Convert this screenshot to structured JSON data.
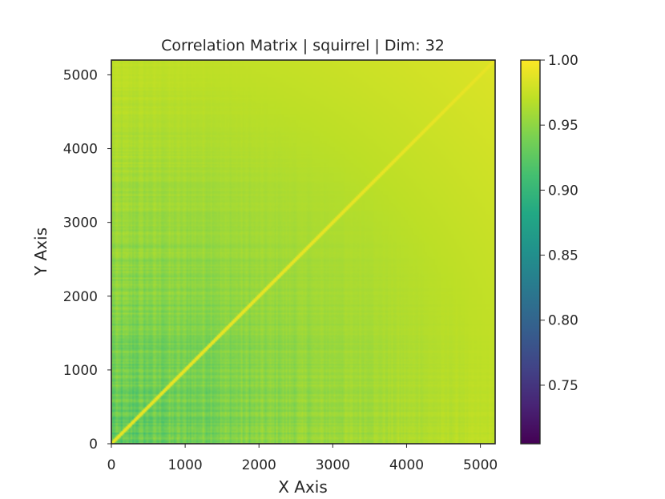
{
  "chart_data": {
    "type": "heatmap",
    "title": "Correlation Matrix | squirrel | Dim: 32",
    "xlabel": "X Axis",
    "ylabel": "Y Axis",
    "xlim": [
      0,
      5200
    ],
    "ylim": [
      0,
      5200
    ],
    "xticks": [
      0,
      1000,
      2000,
      3000,
      4000,
      5000
    ],
    "yticks": [
      0,
      1000,
      2000,
      3000,
      4000,
      5000
    ],
    "xtick_labels": [
      "0",
      "1000",
      "2000",
      "3000",
      "4000",
      "5000"
    ],
    "ytick_labels": [
      "0",
      "1000",
      "2000",
      "3000",
      "4000",
      "5000"
    ],
    "colormap": "viridis",
    "grid": false,
    "colorbar": {
      "vmin": 0.705,
      "vmax": 1.0,
      "ticks": [
        1.0,
        0.95,
        0.9,
        0.85,
        0.8,
        0.75
      ],
      "tick_labels": [
        "1.00",
        "0.95",
        "0.90",
        "0.85",
        "0.80",
        "0.75"
      ],
      "position": "right"
    },
    "matrix_description": {
      "n": 5200,
      "diagonal_value": 1.0,
      "low_index_value": 0.915,
      "high_index_value": 0.985,
      "pattern": "correlation increases with index; lowest values near the bottom-left corner"
    }
  }
}
